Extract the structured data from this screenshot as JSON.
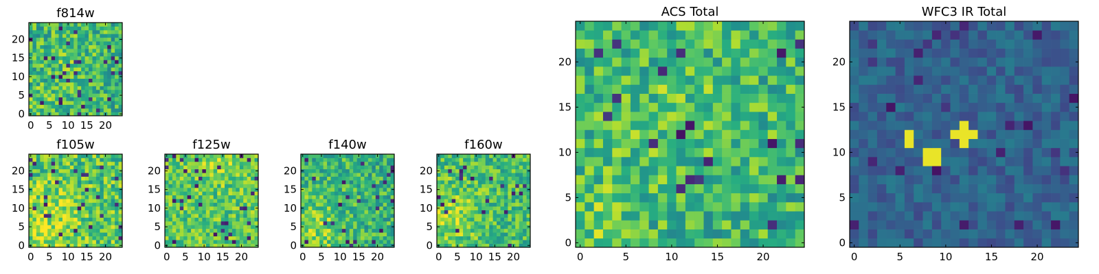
{
  "chart_data": [
    {
      "id": "f814w",
      "type": "heatmap",
      "title": "f814w",
      "colormap": "viridis",
      "grid_size": [
        25,
        25
      ],
      "xlim": [
        -0.5,
        24.5
      ],
      "ylim": [
        -0.5,
        24.5
      ],
      "xticks": [
        0,
        5,
        10,
        15,
        20
      ],
      "yticks": [
        0,
        5,
        10,
        15,
        20
      ],
      "xtick_labels": [
        "0",
        "5",
        "10",
        "15",
        "20"
      ],
      "ytick_labels": [
        "0",
        "5",
        "10",
        "15",
        "20"
      ],
      "seed": 814,
      "level_range": [
        0.45,
        0.88
      ],
      "hotspots": [
        {
          "x": 10,
          "y": 14,
          "amp": 0.07,
          "r": 5
        },
        {
          "x": 2,
          "y": 3,
          "amp": 0.1,
          "r": 3
        }
      ]
    },
    {
      "id": "f105w",
      "type": "heatmap",
      "title": "f105w",
      "colormap": "viridis",
      "grid_size": [
        25,
        25
      ],
      "xlim": [
        -0.5,
        24.5
      ],
      "ylim": [
        -0.5,
        24.5
      ],
      "xticks": [
        0,
        5,
        10,
        15,
        20
      ],
      "yticks": [
        0,
        5,
        10,
        15,
        20
      ],
      "xtick_labels": [
        "0",
        "5",
        "10",
        "15",
        "20"
      ],
      "ytick_labels": [
        "0",
        "5",
        "10",
        "15",
        "20"
      ],
      "seed": 105,
      "level_range": [
        0.5,
        0.95
      ],
      "hotspots": [
        {
          "x": 4,
          "y": 6,
          "amp": 0.16,
          "r": 7
        }
      ]
    },
    {
      "id": "f125w",
      "type": "heatmap",
      "title": "f125w",
      "colormap": "viridis",
      "grid_size": [
        25,
        25
      ],
      "xlim": [
        -0.5,
        24.5
      ],
      "ylim": [
        -0.5,
        24.5
      ],
      "xticks": [
        0,
        5,
        10,
        15,
        20
      ],
      "yticks": [
        0,
        5,
        10,
        15,
        20
      ],
      "xtick_labels": [
        "0",
        "5",
        "10",
        "15",
        "20"
      ],
      "ytick_labels": [
        "0",
        "5",
        "10",
        "15",
        "20"
      ],
      "seed": 125,
      "level_range": [
        0.55,
        0.93
      ],
      "hotspots": [
        {
          "x": 14,
          "y": 22,
          "amp": 0.1,
          "r": 4
        }
      ]
    },
    {
      "id": "f140w",
      "type": "heatmap",
      "title": "f140w",
      "colormap": "viridis",
      "grid_size": [
        25,
        25
      ],
      "xlim": [
        -0.5,
        24.5
      ],
      "ylim": [
        -0.5,
        24.5
      ],
      "xticks": [
        0,
        5,
        10,
        15,
        20
      ],
      "yticks": [
        0,
        5,
        10,
        15,
        20
      ],
      "xtick_labels": [
        "0",
        "5",
        "10",
        "15",
        "20"
      ],
      "ytick_labels": [
        "0",
        "5",
        "10",
        "15",
        "20"
      ],
      "seed": 140,
      "level_range": [
        0.45,
        0.85
      ],
      "hotspots": [
        {
          "x": 3,
          "y": 4,
          "amp": 0.18,
          "r": 6
        }
      ]
    },
    {
      "id": "f160w",
      "type": "heatmap",
      "title": "f160w",
      "colormap": "viridis",
      "grid_size": [
        25,
        25
      ],
      "xlim": [
        -0.5,
        24.5
      ],
      "ylim": [
        -0.5,
        24.5
      ],
      "xticks": [
        0,
        5,
        10,
        15,
        20
      ],
      "yticks": [
        0,
        5,
        10,
        15,
        20
      ],
      "xtick_labels": [
        "0",
        "5",
        "10",
        "15",
        "20"
      ],
      "ytick_labels": [
        "0",
        "5",
        "10",
        "15",
        "20"
      ],
      "seed": 160,
      "level_range": [
        0.5,
        0.88
      ],
      "hotspots": [
        {
          "x": 3,
          "y": 8,
          "amp": 0.16,
          "r": 6
        }
      ]
    },
    {
      "id": "acs_total",
      "type": "heatmap",
      "title": "ACS Total",
      "colormap": "viridis",
      "grid_size": [
        25,
        25
      ],
      "xlim": [
        -0.5,
        24.5
      ],
      "ylim": [
        -0.5,
        24.5
      ],
      "xticks": [
        0,
        5,
        10,
        15,
        20
      ],
      "yticks": [
        0,
        5,
        10,
        15,
        20
      ],
      "xtick_labels": [
        "0",
        "5",
        "10",
        "15",
        "20"
      ],
      "ytick_labels": [
        "0",
        "5",
        "10",
        "15",
        "20"
      ],
      "seed": 777,
      "level_range": [
        0.45,
        0.88
      ],
      "hotspots": [
        {
          "x": 10,
          "y": 14,
          "amp": 0.07,
          "r": 5
        },
        {
          "x": 2,
          "y": 3,
          "amp": 0.1,
          "r": 3
        }
      ]
    },
    {
      "id": "wfc3_ir_total",
      "type": "heatmap",
      "title": "WFC3 IR Total",
      "colormap": "viridis",
      "grid_size": [
        25,
        25
      ],
      "xlim": [
        -0.5,
        24.5
      ],
      "ylim": [
        -0.5,
        24.5
      ],
      "xticks": [
        0,
        5,
        10,
        15,
        20
      ],
      "yticks": [
        0,
        5,
        10,
        15,
        20
      ],
      "xtick_labels": [
        "0",
        "5",
        "10",
        "15",
        "20"
      ],
      "ytick_labels": [
        "0",
        "5",
        "10",
        "15",
        "20"
      ],
      "seed": 333,
      "level_range": [
        0.22,
        0.42
      ],
      "hotspots": [],
      "bright_cells": [
        [
          6,
          12
        ],
        [
          6,
          11
        ],
        [
          8,
          10
        ],
        [
          9,
          10
        ],
        [
          8,
          9
        ],
        [
          9,
          9
        ],
        [
          12,
          13
        ],
        [
          11,
          12
        ],
        [
          12,
          12
        ],
        [
          13,
          12
        ],
        [
          12,
          11
        ]
      ],
      "bright_value": 0.97
    }
  ]
}
